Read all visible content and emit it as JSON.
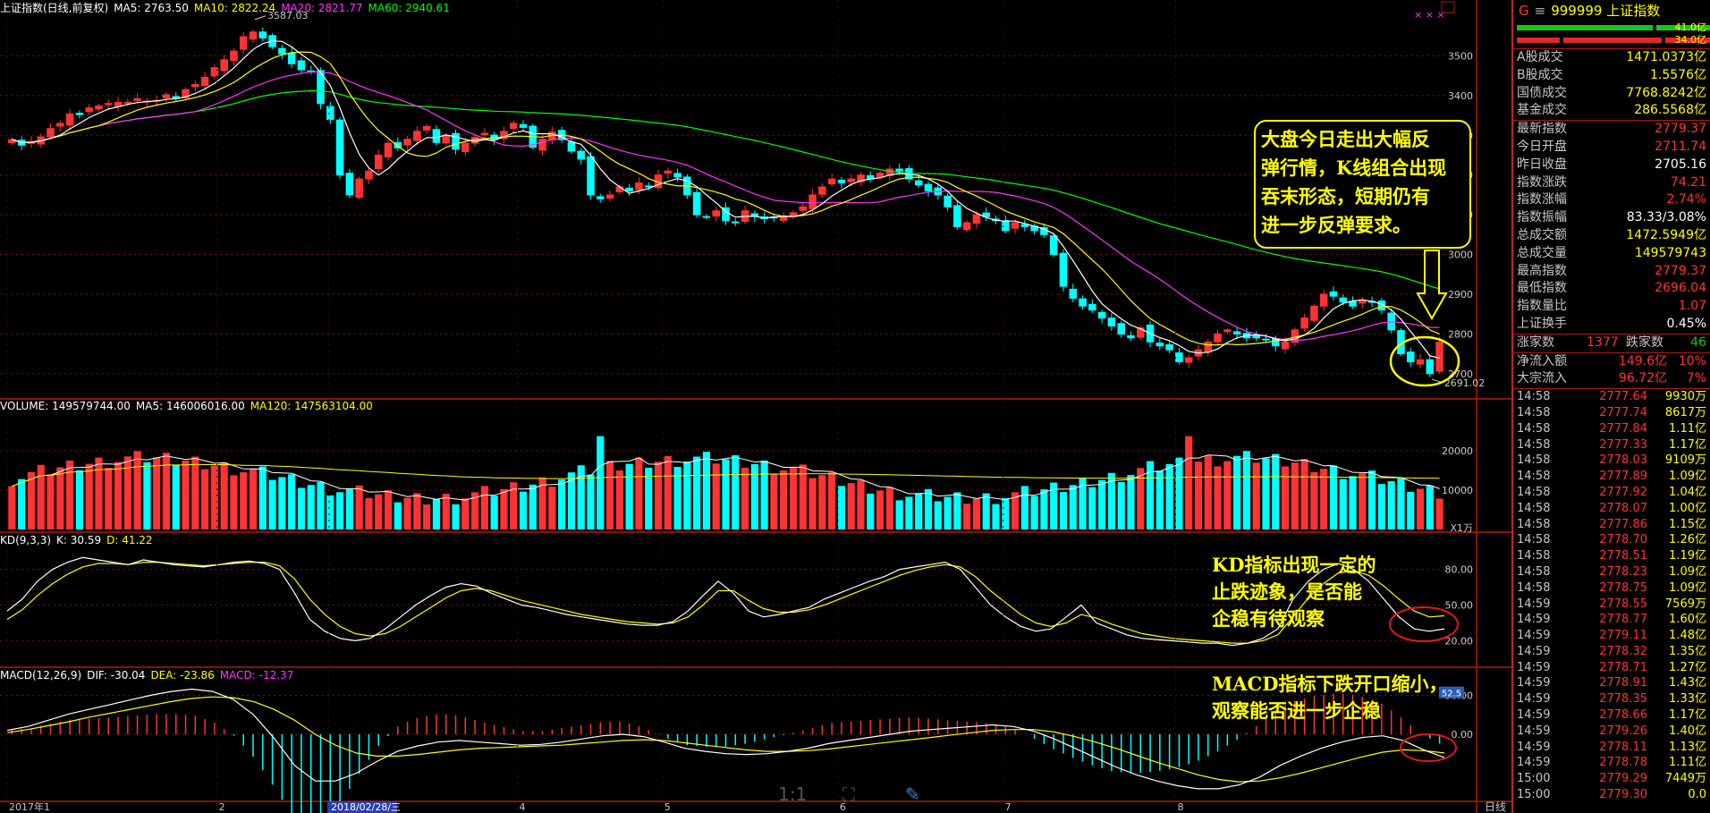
{
  "chart_data": [
    {
      "type": "candlestick",
      "title": "上证指数(日线,前复权)",
      "indicators": [
        {
          "name": "MA5",
          "value": "2763.50",
          "color": "#ffffff"
        },
        {
          "name": "MA10",
          "value": "2822.24",
          "color": "#ffff00"
        },
        {
          "name": "MA20",
          "value": "2821.77",
          "color": "#ff33ff"
        },
        {
          "name": "MA60",
          "value": "2940.61",
          "color": "#00ff00"
        }
      ],
      "y_ticks": [
        3500,
        3400,
        3300,
        3200,
        3100,
        3000,
        2900,
        2800,
        2700
      ],
      "ylim": [
        2650,
        3600
      ],
      "max_label": "3587.03",
      "min_label": "2691.02",
      "closes": [
        3289,
        3275,
        3284,
        3296,
        3317,
        3330,
        3354,
        3352,
        3369,
        3374,
        3380,
        3383,
        3383,
        3392,
        3386,
        3388,
        3402,
        3393,
        3415,
        3428,
        3446,
        3470,
        3490,
        3512,
        3548,
        3560,
        3545,
        3523,
        3505,
        3480,
        3465,
        3460,
        3380,
        3340,
        3200,
        3150,
        3190,
        3210,
        3250,
        3280,
        3268,
        3290,
        3310,
        3322,
        3282,
        3300,
        3265,
        3280,
        3295,
        3305,
        3290,
        3310,
        3330,
        3320,
        3270,
        3290,
        3308,
        3289,
        3260,
        3240,
        3150,
        3140,
        3150,
        3170,
        3160,
        3180,
        3170,
        3200,
        3210,
        3195,
        3150,
        3100,
        3095,
        3110,
        3085,
        3080,
        3110,
        3096,
        3090,
        3092,
        3095,
        3105,
        3120,
        3150,
        3170,
        3190,
        3180,
        3190,
        3200,
        3190,
        3205,
        3215,
        3210,
        3190,
        3175,
        3160,
        3150,
        3120,
        3070,
        3080,
        3100,
        3095,
        3085,
        3060,
        3080,
        3070,
        3060,
        3050,
        3000,
        2920,
        2890,
        2870,
        2860,
        2840,
        2820,
        2800,
        2790,
        2815,
        2780,
        2770,
        2760,
        2730,
        2740,
        2760,
        2780,
        2800,
        2810,
        2800,
        2790,
        2790,
        2785,
        2770,
        2780,
        2810,
        2840,
        2870,
        2900,
        2895,
        2880,
        2870,
        2885,
        2880,
        2860,
        2810,
        2750,
        2730,
        2735,
        2700,
        2779.37
      ],
      "volume": {
        "indicators": [
          {
            "name": "VOLUME",
            "value": "149579744.00",
            "color": "#ffffff"
          },
          {
            "name": "MA5",
            "value": "146006016.00",
            "color": "#ffffff"
          },
          {
            "name": "MA120",
            "value": "147563104.00",
            "color": "#ffff00"
          }
        ],
        "unit": "X1万",
        "y_ticks": [
          20000,
          10000
        ]
      },
      "kd": {
        "header": "KD(9,3,3)",
        "indicators": [
          {
            "name": "K",
            "value": "30.59",
            "color": "#ffffff"
          },
          {
            "name": "D",
            "value": "41.22",
            "color": "#ffff00"
          }
        ],
        "y_ticks": [
          "80.00",
          "50.00",
          "20.00"
        ],
        "k": [
          45,
          55,
          70,
          80,
          86,
          90,
          88,
          86,
          84,
          88,
          86,
          84,
          83,
          82,
          84,
          86,
          87,
          85,
          80,
          60,
          38,
          28,
          22,
          20,
          22,
          30,
          40,
          50,
          58,
          65,
          68,
          66,
          60,
          55,
          50,
          48,
          45,
          42,
          40,
          38,
          36,
          34,
          33,
          33,
          36,
          45,
          58,
          70,
          60,
          45,
          40,
          42,
          45,
          48,
          55,
          60,
          65,
          70,
          74,
          80,
          82,
          84,
          86,
          80,
          65,
          50,
          40,
          32,
          28,
          30,
          40,
          50,
          35,
          30,
          25,
          22,
          21,
          20,
          19,
          18,
          18,
          16,
          18,
          22,
          30,
          55,
          70,
          80,
          85,
          80,
          70,
          55,
          40,
          30,
          28,
          30
        ],
        "d": [
          38,
          46,
          58,
          68,
          76,
          82,
          85,
          85,
          84,
          86,
          86,
          85,
          84,
          83,
          84,
          85,
          86,
          86,
          83,
          72,
          55,
          42,
          32,
          26,
          24,
          26,
          32,
          40,
          48,
          56,
          62,
          64,
          62,
          58,
          54,
          51,
          48,
          45,
          42,
          40,
          38,
          36,
          35,
          34,
          35,
          40,
          50,
          62,
          62,
          54,
          47,
          44,
          44,
          46,
          50,
          55,
          60,
          65,
          70,
          75,
          79,
          82,
          84,
          82,
          74,
          62,
          52,
          42,
          35,
          32,
          35,
          42,
          39,
          34,
          30,
          26,
          24,
          22,
          21,
          20,
          19,
          18,
          18,
          20,
          25,
          40,
          56,
          68,
          77,
          79,
          75,
          66,
          55,
          45,
          40,
          41
        ]
      },
      "macd": {
        "header": "MACD(12,26,9)",
        "indicators": [
          {
            "name": "DIF",
            "value": "-30.04",
            "color": "#ffffff"
          },
          {
            "name": "DEA",
            "value": "-23.86",
            "color": "#ffff00"
          },
          {
            "name": "MACD",
            "value": "-12.37",
            "color": "#ff33ff"
          }
        ],
        "y_ticks": [
          "50.00",
          "0.00"
        ],
        "side_badge": "52.5",
        "dif": [
          5,
          10,
          18,
          26,
          32,
          38,
          44,
          50,
          55,
          58,
          55,
          45,
          25,
          -5,
          -40,
          -60,
          -60,
          -50,
          -35,
          -22,
          -15,
          -10,
          -8,
          -10,
          -12,
          -14,
          -13,
          -10,
          -6,
          -2,
          0,
          -3,
          -10,
          -18,
          -22,
          -25,
          -26,
          -25,
          -22,
          -18,
          -12,
          -8,
          -4,
          0,
          4,
          6,
          8,
          10,
          12,
          10,
          4,
          -6,
          -18,
          -30,
          -42,
          -52,
          -60,
          -66,
          -70,
          -70,
          -65,
          -55,
          -40,
          -28,
          -18,
          -10,
          -4,
          -2,
          -8,
          -20,
          -30
        ],
        "dea": [
          2,
          6,
          11,
          16,
          22,
          27,
          32,
          37,
          42,
          46,
          48,
          47,
          42,
          32,
          18,
          0,
          -14,
          -24,
          -28,
          -28,
          -26,
          -23,
          -20,
          -18,
          -17,
          -16,
          -15,
          -14,
          -12,
          -10,
          -8,
          -7,
          -8,
          -11,
          -14,
          -17,
          -20,
          -22,
          -22,
          -21,
          -19,
          -16,
          -13,
          -10,
          -7,
          -4,
          -1,
          2,
          5,
          6,
          6,
          3,
          -3,
          -10,
          -18,
          -27,
          -36,
          -44,
          -52,
          -58,
          -61,
          -60,
          -56,
          -50,
          -43,
          -36,
          -29,
          -23,
          -20,
          -21,
          -24
        ]
      },
      "x_ticks": [
        {
          "label": "2017年1",
          "pos": 0.0,
          "highlight": false
        },
        {
          "label": "2",
          "pos": 0.146,
          "highlight": false
        },
        {
          "label": "2018/02/28/三",
          "pos": 0.224,
          "highlight": true
        },
        {
          "label": "4",
          "pos": 0.355,
          "highlight": false
        },
        {
          "label": "5",
          "pos": 0.456,
          "highlight": false
        },
        {
          "label": "6",
          "pos": 0.578,
          "highlight": false
        },
        {
          "label": "7",
          "pos": 0.693,
          "highlight": false
        },
        {
          "label": "8",
          "pos": 0.813,
          "highlight": false
        }
      ],
      "period_label": "日线"
    }
  ],
  "annotations": {
    "main": [
      "大盘今日走出大幅反",
      "弹行情，K线组合出现",
      "吞末形态，短期仍有",
      "进一步反弹要求。"
    ],
    "kd": [
      "KD指标出现一定的",
      "止跌迹象，是否能",
      "企稳有待观察"
    ],
    "macd": [
      "MACD指标下跌开口缩小，",
      "观察能否进一步企稳"
    ]
  },
  "sidebar": {
    "code": "999999",
    "name": "上证指数",
    "g": "G",
    "bar_vals": [
      "41.0亿",
      "34.0亿"
    ],
    "stats": [
      {
        "k": "A股成交",
        "v": "1471.0373亿",
        "c": "#ffff00"
      },
      {
        "k": "B股成交",
        "v": "1.5576亿",
        "c": "#ffff00"
      },
      {
        "k": "国债成交",
        "v": "7768.8242亿",
        "c": "#ffff00"
      },
      {
        "k": "基金成交",
        "v": "286.5568亿",
        "c": "#ffff00"
      }
    ],
    "stats2": [
      {
        "k": "最新指数",
        "v": "2779.37",
        "c": "#ff3333"
      },
      {
        "k": "今日开盘",
        "v": "2711.74",
        "c": "#ff3333"
      },
      {
        "k": "昨日收盘",
        "v": "2705.16",
        "c": "#ffffff"
      },
      {
        "k": "指数涨跌",
        "v": "74.21",
        "c": "#ff3333"
      },
      {
        "k": "指数涨幅",
        "v": "2.74%",
        "c": "#ff3333"
      },
      {
        "k": "指数振幅",
        "v": "83.33/3.08%",
        "c": "#ffffff"
      },
      {
        "k": "总成交额",
        "v": "1472.5949亿",
        "c": "#ffff00"
      },
      {
        "k": "总成交量",
        "v": "149579743",
        "c": "#ffff00"
      },
      {
        "k": "最高指数",
        "v": "2779.37",
        "c": "#ff3333"
      },
      {
        "k": "最低指数",
        "v": "2696.04",
        "c": "#ff3333"
      },
      {
        "k": "指数量比",
        "v": "1.07",
        "c": "#ff3333"
      },
      {
        "k": "上证换手",
        "v": "0.45%",
        "c": "#ffffff"
      }
    ],
    "updown": {
      "up_label": "涨家数",
      "up": "1377",
      "down_label": "跌家数",
      "down": "46"
    },
    "flow": [
      {
        "k": "净流入额",
        "v": "149.6亿",
        "pct": "10%"
      },
      {
        "k": "大宗流入",
        "v": "96.72亿",
        "pct": "7%"
      }
    ],
    "ticks": [
      {
        "t": "14:58",
        "p": "2777.64",
        "q": "9930万"
      },
      {
        "t": "14:58",
        "p": "2777.74",
        "q": "8617万"
      },
      {
        "t": "14:58",
        "p": "2777.84",
        "q": "1.11亿"
      },
      {
        "t": "14:58",
        "p": "2777.33",
        "q": "1.17亿"
      },
      {
        "t": "14:58",
        "p": "2778.03",
        "q": "9109万"
      },
      {
        "t": "14:58",
        "p": "2777.89",
        "q": "1.09亿"
      },
      {
        "t": "14:58",
        "p": "2777.92",
        "q": "1.04亿"
      },
      {
        "t": "14:58",
        "p": "2778.07",
        "q": "1.00亿"
      },
      {
        "t": "14:58",
        "p": "2777.86",
        "q": "1.15亿"
      },
      {
        "t": "14:58",
        "p": "2778.70",
        "q": "1.26亿"
      },
      {
        "t": "14:58",
        "p": "2778.51",
        "q": "1.19亿"
      },
      {
        "t": "14:58",
        "p": "2778.23",
        "q": "1.09亿"
      },
      {
        "t": "14:58",
        "p": "2778.75",
        "q": "1.09亿"
      },
      {
        "t": "14:59",
        "p": "2778.55",
        "q": "7569万"
      },
      {
        "t": "14:59",
        "p": "2778.77",
        "q": "1.60亿"
      },
      {
        "t": "14:59",
        "p": "2779.11",
        "q": "1.48亿"
      },
      {
        "t": "14:59",
        "p": "2778.32",
        "q": "1.35亿"
      },
      {
        "t": "14:59",
        "p": "2778.71",
        "q": "1.27亿"
      },
      {
        "t": "14:59",
        "p": "2778.91",
        "q": "1.43亿"
      },
      {
        "t": "14:59",
        "p": "2778.35",
        "q": "1.33亿"
      },
      {
        "t": "14:59",
        "p": "2778.66",
        "q": "1.17亿"
      },
      {
        "t": "14:59",
        "p": "2779.26",
        "q": "1.40亿"
      },
      {
        "t": "14:59",
        "p": "2778.11",
        "q": "1.13亿"
      },
      {
        "t": "14:59",
        "p": "2778.78",
        "q": "1.11亿"
      },
      {
        "t": "15:00",
        "p": "2779.29",
        "q": "7449万"
      },
      {
        "t": "15:00",
        "p": "2779.30",
        "q": "0.0"
      }
    ]
  },
  "toolbar": {
    "ratio": "1:1"
  }
}
